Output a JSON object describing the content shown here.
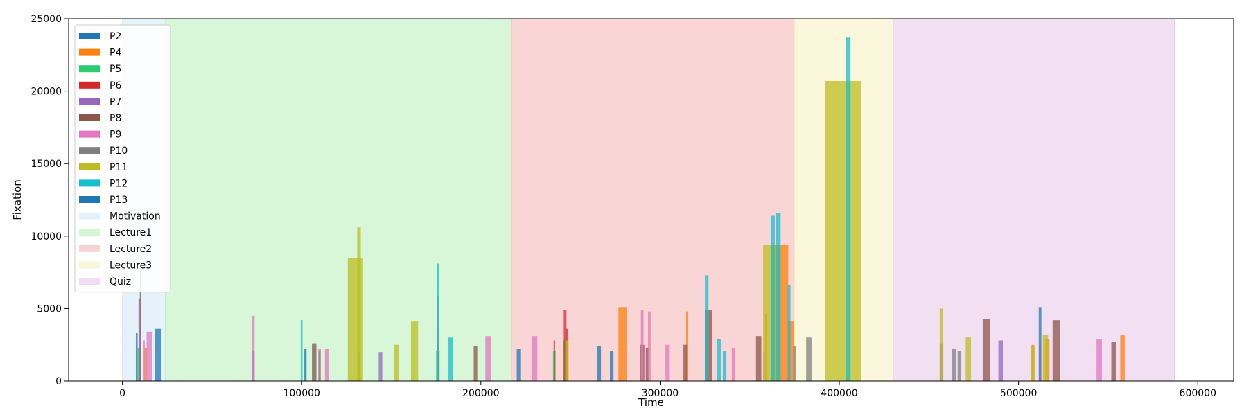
{
  "chart_data": {
    "type": "bar",
    "xlabel": "Time",
    "ylabel": "Fixation",
    "xlim": [
      -30000,
      620000
    ],
    "ylim": [
      0,
      25000
    ],
    "xticks": [
      0,
      100000,
      200000,
      300000,
      400000,
      500000,
      600000
    ],
    "yticks": [
      0,
      5000,
      10000,
      15000,
      20000,
      25000
    ],
    "grid": false,
    "legend_position": "top-left",
    "phases": [
      {
        "name": "Motivation",
        "start": 0,
        "end": 24000,
        "color": "#d2e8f6"
      },
      {
        "name": "Lecture1",
        "start": 24000,
        "end": 217000,
        "color": "#b8f0b8"
      },
      {
        "name": "Lecture2",
        "start": 217000,
        "end": 375000,
        "color": "#f5b3b3"
      },
      {
        "name": "Lecture3",
        "start": 375000,
        "end": 430000,
        "color": "#f7f0c0"
      },
      {
        "name": "Quiz",
        "start": 430000,
        "end": 587000,
        "color": "#e7c4e8"
      }
    ],
    "series": [
      {
        "name": "P2",
        "color": "#1f77b4",
        "bars": [
          [
            8000,
            3300,
            1000
          ],
          [
            20000,
            3600,
            3500
          ],
          [
            102000,
            2200,
            1500
          ],
          [
            221000,
            2200,
            2000
          ],
          [
            266000,
            2400,
            2000
          ],
          [
            273000,
            2100,
            2000
          ],
          [
            512000,
            5100,
            1500
          ]
        ]
      },
      {
        "name": "P4",
        "color": "#ff7f0e",
        "bars": [
          [
            13000,
            2300,
            1500
          ],
          [
            279000,
            5100,
            4500
          ],
          [
            315000,
            4800,
            1000
          ],
          [
            359000,
            4600,
            1000
          ],
          [
            367000,
            9400,
            9000
          ],
          [
            373000,
            4100,
            3500
          ],
          [
            508000,
            2500,
            1500
          ],
          [
            516000,
            2900,
            2500
          ],
          [
            558000,
            3200,
            2500
          ]
        ]
      },
      {
        "name": "P5",
        "color": "#2ecc71",
        "bars": [
          [
            9000,
            2300,
            1500
          ],
          [
            176000,
            2100,
            2000
          ],
          [
            241000,
            2100,
            1500
          ],
          [
            247000,
            2800,
            2000
          ]
        ]
      },
      {
        "name": "P6",
        "color": "#d62728",
        "bars": [
          [
            176000,
            3700,
            1000
          ],
          [
            241000,
            2800,
            800
          ],
          [
            247000,
            4900,
            1500
          ],
          [
            248000,
            3600,
            1000
          ]
        ]
      },
      {
        "name": "P7",
        "color": "#9467bd",
        "bars": [
          [
            9500,
            5700,
            1000
          ],
          [
            73000,
            2100,
            1500
          ],
          [
            132000,
            2100,
            1500
          ],
          [
            144000,
            2000,
            2000
          ],
          [
            457000,
            2600,
            2000
          ],
          [
            490000,
            2800,
            2500
          ],
          [
            512000,
            2500,
            1000
          ]
        ]
      },
      {
        "name": "P8",
        "color": "#8c564b",
        "bars": [
          [
            10000,
            7800,
            600
          ],
          [
            107000,
            2600,
            2500
          ],
          [
            197000,
            2400,
            2000
          ],
          [
            290000,
            2500,
            2500
          ],
          [
            293000,
            2300,
            2000
          ],
          [
            314000,
            2500,
            2000
          ],
          [
            327000,
            4900,
            4000
          ],
          [
            355000,
            3100,
            3000
          ],
          [
            482000,
            4300,
            4000
          ],
          [
            521000,
            4200,
            4000
          ],
          [
            553000,
            2700,
            2500
          ]
        ]
      },
      {
        "name": "P9",
        "color": "#e377c2",
        "bars": [
          [
            12000,
            2800,
            1000
          ],
          [
            15000,
            3400,
            3000
          ],
          [
            73000,
            4500,
            1500
          ],
          [
            110000,
            2200,
            1500
          ],
          [
            114000,
            2200,
            2000
          ],
          [
            176000,
            5900,
            1000
          ],
          [
            204000,
            3100,
            3000
          ],
          [
            230000,
            3100,
            3000
          ],
          [
            290000,
            4900,
            1500
          ],
          [
            294000,
            4800,
            1500
          ],
          [
            304000,
            2500,
            2000
          ],
          [
            341000,
            2300,
            2000
          ],
          [
            358000,
            2000,
            1000
          ],
          [
            545000,
            2900,
            3000
          ]
        ]
      },
      {
        "name": "P10",
        "color": "#7f7f7f",
        "bars": [
          [
            107000,
            2200,
            1500
          ],
          [
            110000,
            2100,
            1000
          ],
          [
            375000,
            2400,
            1500
          ],
          [
            383000,
            3000,
            3000
          ],
          [
            464000,
            2200,
            2000
          ],
          [
            467000,
            2100,
            2000
          ]
        ]
      },
      {
        "name": "P11",
        "color": "#bcbd22",
        "bars": [
          [
            130000,
            8500,
            8500
          ],
          [
            132000,
            10600,
            2000
          ],
          [
            153000,
            2500,
            2500
          ],
          [
            163000,
            4100,
            4000
          ],
          [
            248000,
            2800,
            2000
          ],
          [
            362000,
            9400,
            9000
          ],
          [
            402000,
            20700,
            20000
          ],
          [
            457000,
            5000,
            2000
          ],
          [
            472000,
            3000,
            3000
          ],
          [
            508000,
            2400,
            2000
          ],
          [
            515000,
            3200,
            3000
          ]
        ]
      },
      {
        "name": "P12",
        "color": "#17becf",
        "bars": [
          [
            100000,
            4200,
            1000
          ],
          [
            176000,
            8100,
            1000
          ],
          [
            183000,
            3000,
            3000
          ],
          [
            326000,
            7300,
            2000
          ],
          [
            333000,
            2900,
            2500
          ],
          [
            336000,
            2100,
            2000
          ],
          [
            363000,
            11400,
            2000
          ],
          [
            366000,
            11600,
            2500
          ],
          [
            372000,
            6600,
            1500
          ],
          [
            405000,
            23700,
            2500
          ]
        ]
      },
      {
        "name": "P13",
        "color": "#1f77b4",
        "bars": []
      }
    ]
  }
}
